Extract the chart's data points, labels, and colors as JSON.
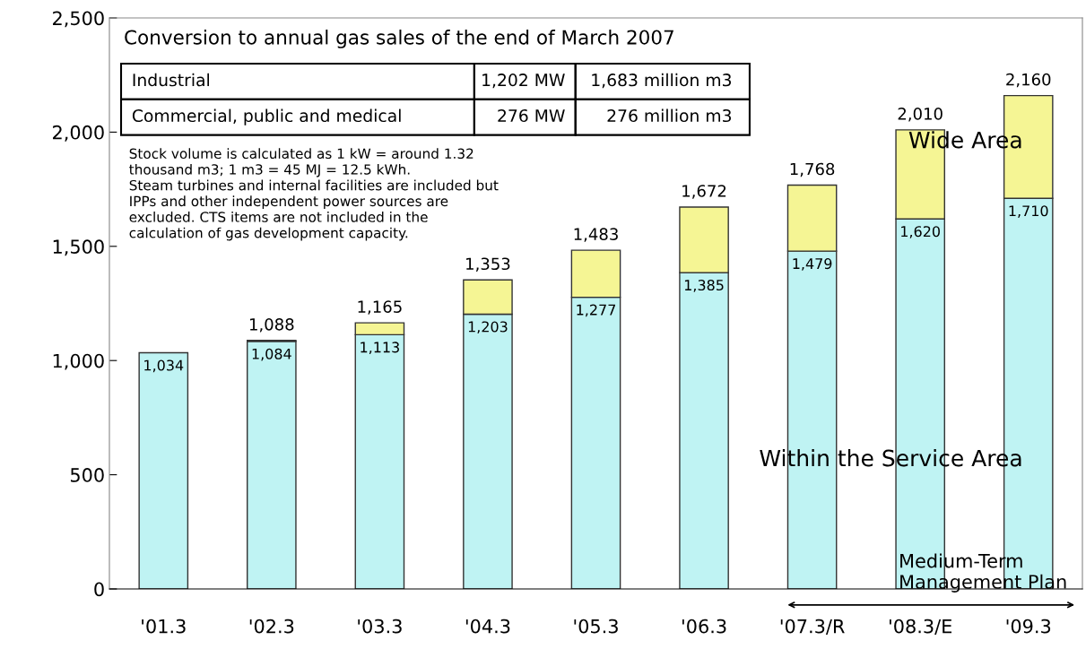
{
  "chart_data": {
    "type": "bar",
    "stacked": true,
    "categories": [
      "'01.3",
      "'02.3",
      "'03.3",
      "'04.3",
      "'05.3",
      "'06.3",
      "'07.3/R",
      "'08.3/E",
      "'09.3"
    ],
    "series": [
      {
        "name": "Within the Service Area",
        "color": "#bff3f3",
        "values": [
          1034,
          1084,
          1113,
          1203,
          1277,
          1385,
          1479,
          1620,
          1710
        ],
        "value_labels": [
          "1,034",
          "1,084",
          "1,113",
          "1,203",
          "1,277",
          "1,385",
          "1,479",
          "1,620",
          "1,710"
        ]
      },
      {
        "name": "Wide Area",
        "color": "#f5f594",
        "values": [
          null,
          4,
          52,
          150,
          206,
          287,
          289,
          390,
          450
        ]
      }
    ],
    "totals": [
      null,
      "1,088",
      "1,165",
      "1,353",
      "1,483",
      "1,672",
      "1,768",
      "2,010",
      "2,160"
    ],
    "ylim": [
      0,
      2500
    ],
    "yticks": [
      {
        "value": 0,
        "label": "0"
      },
      {
        "value": 500,
        "label": "500"
      },
      {
        "value": 1000,
        "label": "1,000"
      },
      {
        "value": 1500,
        "label": "1,500"
      },
      {
        "value": 2000,
        "label": "2,000"
      },
      {
        "value": 2500,
        "label": "2,500"
      }
    ],
    "grid": false,
    "legend": false,
    "annotations": [
      "Conversion to annual gas sales of the end of March 2007",
      "Industrial",
      "1,202 MW",
      "1,683 million m3",
      "Commercial, public and medical",
      "276 MW",
      "276 million m3",
      "Stock volume is calculated as 1 kW = around 1.32\nthousand m3; 1 m3 = 45 MJ = 12.5 kWh.\nSteam turbines and internal facilities are included but\nIPPs and other independent power sources are\nexcluded. CTS items are not included in the\ncalculation of gas development capacity.",
      "Medium-Term\nManagement Plan"
    ]
  }
}
